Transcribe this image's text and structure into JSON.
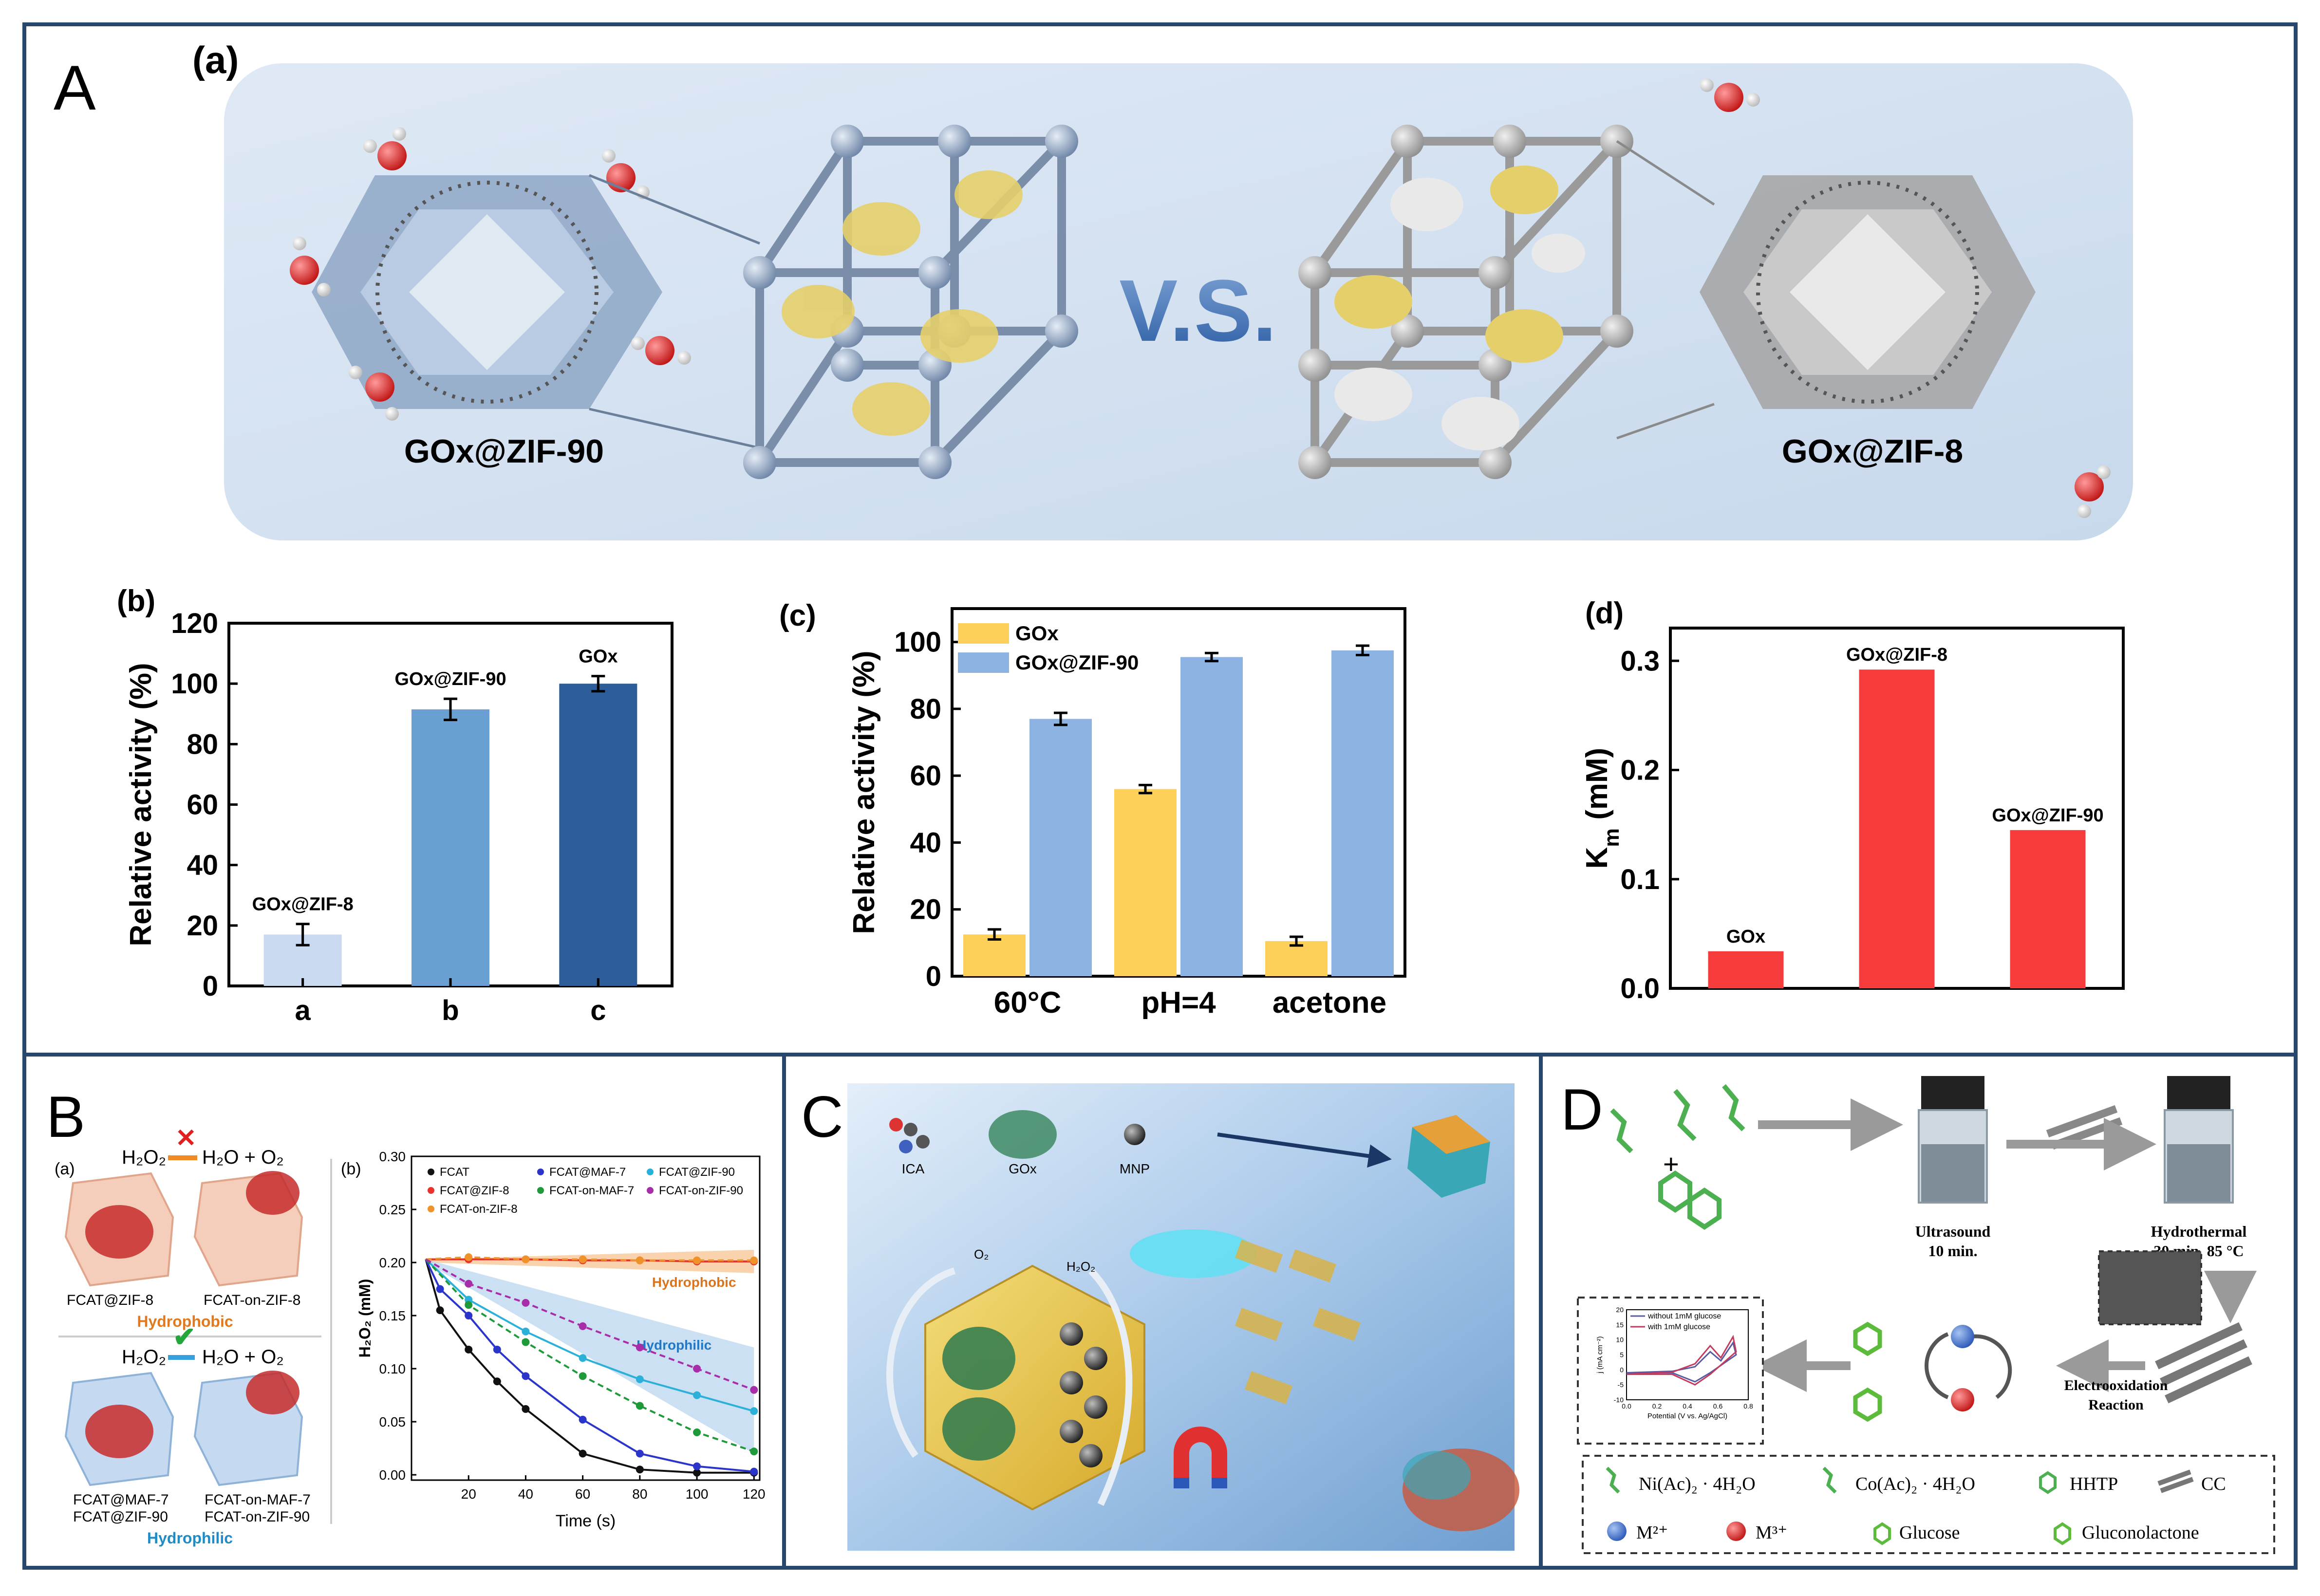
{
  "panel_A": {
    "letter": "A",
    "sub_a": {
      "label": "(a)",
      "left_name": "GOx@ZIF-90",
      "right_name": "GOx@ZIF-8",
      "vs": "V.S."
    },
    "sub_b": {
      "label": "(b)",
      "ylabel": "Relative activity (%)",
      "y_ticks": [
        "0",
        "20",
        "40",
        "60",
        "80",
        "100",
        "120"
      ],
      "categories": [
        "a",
        "b",
        "c"
      ],
      "bar_labels": [
        "GOx@ZIF-8",
        "GOx@ZIF-90",
        "GOx"
      ]
    },
    "sub_c": {
      "label": "(c)",
      "ylabel": "Relative activity (%)",
      "y_ticks": [
        "0",
        "20",
        "40",
        "60",
        "80",
        "100"
      ],
      "categories": [
        "60°C",
        "pH=4",
        "acetone"
      ],
      "legend": [
        "GOx",
        "GOx@ZIF-90"
      ]
    },
    "sub_d": {
      "label": "(d)",
      "ylabel_main": "K",
      "ylabel_sub": "m",
      "ylabel_unit": " (mM)",
      "y_ticks": [
        "0.0",
        "0.1",
        "0.2",
        "0.3"
      ],
      "bar_labels": [
        "GOx",
        "GOx@ZIF-8",
        "GOx@ZIF-90"
      ]
    }
  },
  "panel_B": {
    "letter": "B",
    "sub_a": "(a)",
    "sub_b": "(b)",
    "h2o2": "H₂O₂",
    "products": "H₂O + O₂",
    "labels_top": [
      "FCAT@ZIF-8",
      "FCAT-on-ZIF-8"
    ],
    "hydrophobic": "Hydrophobic",
    "labels_bottom_1": [
      "FCAT@MAF-7",
      "FCAT-on-MAF-7"
    ],
    "labels_bottom_2": [
      "FCAT@ZIF-90",
      "FCAT-on-ZIF-90"
    ],
    "hydrophilic": "Hydrophilic",
    "ylabel": "H₂O₂ (mM)",
    "xlabel": "Time (s)",
    "y_ticks": [
      "0.00",
      "0.05",
      "0.10",
      "0.15",
      "0.20",
      "0.25",
      "0.30"
    ],
    "x_ticks": [
      "20",
      "40",
      "60",
      "80",
      "100",
      "120"
    ],
    "legend": [
      "FCAT",
      "FCAT@ZIF-8",
      "FCAT@MAF-7",
      "FCAT@ZIF-90",
      "FCAT-on-ZIF-8",
      "FCAT-on-MAF-7",
      "FCAT-on-ZIF-90"
    ],
    "band_hydrophobic": "Hydrophobic",
    "band_hydrophilic": "Hydrophilic"
  },
  "panel_C": {
    "letter": "C",
    "items": [
      "ICA",
      "GOx",
      "MNP"
    ],
    "o2": "O₂",
    "h2o2": "H₂O₂"
  },
  "panel_D": {
    "letter": "D",
    "ultrasound": "Ultrasound",
    "ultrasound_time": "10 min.",
    "hydrothermal": "Hydrothermal",
    "hydrothermal_cond": "30 min.  85 °C",
    "electro_1": "Electrooxidation",
    "electro_2": "Reaction",
    "cv_legend": [
      "without 1mM glucose",
      "with 1mM glucose"
    ],
    "cv_xlabel": "Potential (V vs. Ag/AgCl)",
    "cv_ylabel": "j (mA cm⁻²)",
    "cv_y_ticks": [
      "20",
      "15",
      "10",
      "5",
      "0",
      "-5",
      "-10"
    ],
    "cv_x_ticks": [
      "0.0",
      "0.2",
      "0.4",
      "0.6",
      "0.8"
    ],
    "legend_items": [
      "Ni(Ac)₂ · 4H₂O",
      "Co(Ac)₂ · 4H₂O",
      "HHTP",
      "CC",
      "M²⁺",
      "M³⁺",
      "Glucose",
      "Gluconolactone"
    ]
  },
  "chart_data": [
    {
      "id": "A-b",
      "type": "bar",
      "categories": [
        "a",
        "b",
        "c"
      ],
      "values": [
        17,
        91.5,
        100
      ],
      "errors": [
        3.5,
        3.5,
        2.5
      ],
      "annotations": [
        "GOx@ZIF-8",
        "GOx@ZIF-90",
        "GOx"
      ],
      "colors": [
        "#c9d9ef",
        "#6a9fd4",
        "#2d5d98"
      ],
      "ylabel": "Relative activity (%)",
      "ylim": [
        0,
        120
      ]
    },
    {
      "id": "A-c",
      "type": "bar",
      "categories": [
        "60°C",
        "pH=4",
        "acetone"
      ],
      "series": [
        {
          "name": "GOx",
          "values": [
            12.5,
            56,
            10.5
          ],
          "errors": [
            1.5,
            1.2,
            1.3
          ],
          "color": "#fdd05a"
        },
        {
          "name": "GOx@ZIF-90",
          "values": [
            77,
            95.5,
            97.5
          ],
          "errors": [
            1.8,
            1.2,
            1.4
          ],
          "color": "#8db3e2"
        }
      ],
      "ylabel": "Relative activity (%)",
      "ylim": [
        0,
        110
      ],
      "legend": "top-left"
    },
    {
      "id": "A-d",
      "type": "bar",
      "categories": [
        "GOx",
        "GOx@ZIF-8",
        "GOx@ZIF-90"
      ],
      "values": [
        0.034,
        0.292,
        0.145
      ],
      "colors": [
        "#f53b3b",
        "#f53b3b",
        "#f53b3b"
      ],
      "ylabel": "Km (mM)",
      "ylim": [
        0,
        0.33
      ]
    },
    {
      "id": "B-b",
      "type": "scatter",
      "xlabel": "Time (s)",
      "ylabel": "H₂O₂ (mM)",
      "xlim": [
        0,
        122
      ],
      "ylim": [
        -0.005,
        0.3
      ],
      "legend": "top",
      "series": [
        {
          "name": "FCAT",
          "color": "#111111",
          "x": [
            10,
            20,
            30,
            40,
            60,
            80,
            100,
            120
          ],
          "y": [
            0.155,
            0.118,
            0.088,
            0.062,
            0.02,
            0.005,
            0.002,
            0.002
          ]
        },
        {
          "name": "FCAT@ZIF-8",
          "color": "#e8322a",
          "x": [
            20,
            40,
            60,
            80,
            100,
            120
          ],
          "y": [
            0.203,
            0.203,
            0.202,
            0.202,
            0.201,
            0.201
          ]
        },
        {
          "name": "FCAT@MAF-7",
          "color": "#2b35c9",
          "x": [
            10,
            20,
            30,
            40,
            60,
            80,
            100,
            120
          ],
          "y": [
            0.175,
            0.15,
            0.118,
            0.093,
            0.052,
            0.02,
            0.008,
            0.003
          ]
        },
        {
          "name": "FCAT@ZIF-90",
          "color": "#2bb0d9",
          "x": [
            20,
            40,
            60,
            80,
            100,
            120
          ],
          "y": [
            0.165,
            0.135,
            0.11,
            0.09,
            0.075,
            0.06
          ]
        },
        {
          "name": "FCAT-on-ZIF-8",
          "color": "#f0922a",
          "x": [
            20,
            40,
            60,
            80,
            100,
            120
          ],
          "y": [
            0.205,
            0.203,
            0.203,
            0.202,
            0.202,
            0.202
          ]
        },
        {
          "name": "FCAT-on-MAF-7",
          "color": "#1e9a3a",
          "x": [
            20,
            40,
            60,
            80,
            100,
            120
          ],
          "y": [
            0.16,
            0.125,
            0.093,
            0.065,
            0.04,
            0.022
          ]
        },
        {
          "name": "FCAT-on-ZIF-90",
          "color": "#a72ea8",
          "x": [
            20,
            40,
            60,
            80,
            100,
            120
          ],
          "y": [
            0.18,
            0.162,
            0.14,
            0.12,
            0.1,
            0.08
          ]
        }
      ]
    },
    {
      "id": "D-cv",
      "type": "line",
      "xlabel": "Potential (V vs. Ag/AgCl)",
      "ylabel": "j (mA cm⁻²)",
      "xlim": [
        0,
        0.8
      ],
      "ylim": [
        -10,
        20
      ],
      "series": [
        {
          "name": "without 1mM glucose",
          "color": "#5a5aa0"
        },
        {
          "name": "with 1mM glucose",
          "color": "#c33b5e"
        }
      ]
    }
  ]
}
